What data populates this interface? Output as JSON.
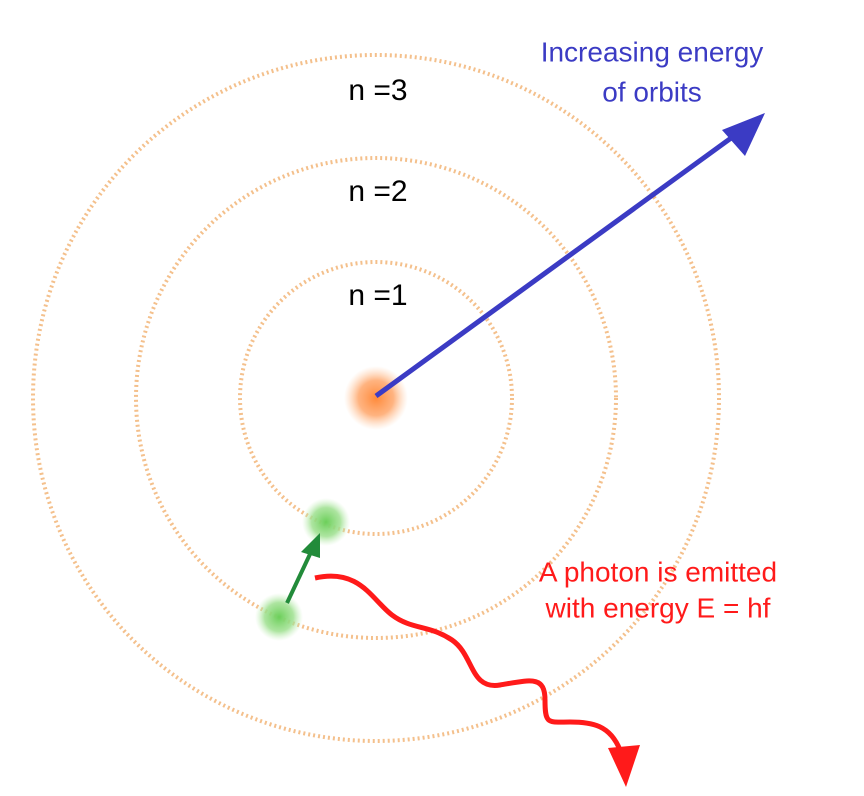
{
  "orbit_labels": [
    "n =3",
    "n =2",
    "n =1"
  ],
  "energy_label": [
    "Increasing energy",
    "of orbits"
  ],
  "photon_label": [
    "A photon is emitted",
    "with energy E = hf"
  ]
}
